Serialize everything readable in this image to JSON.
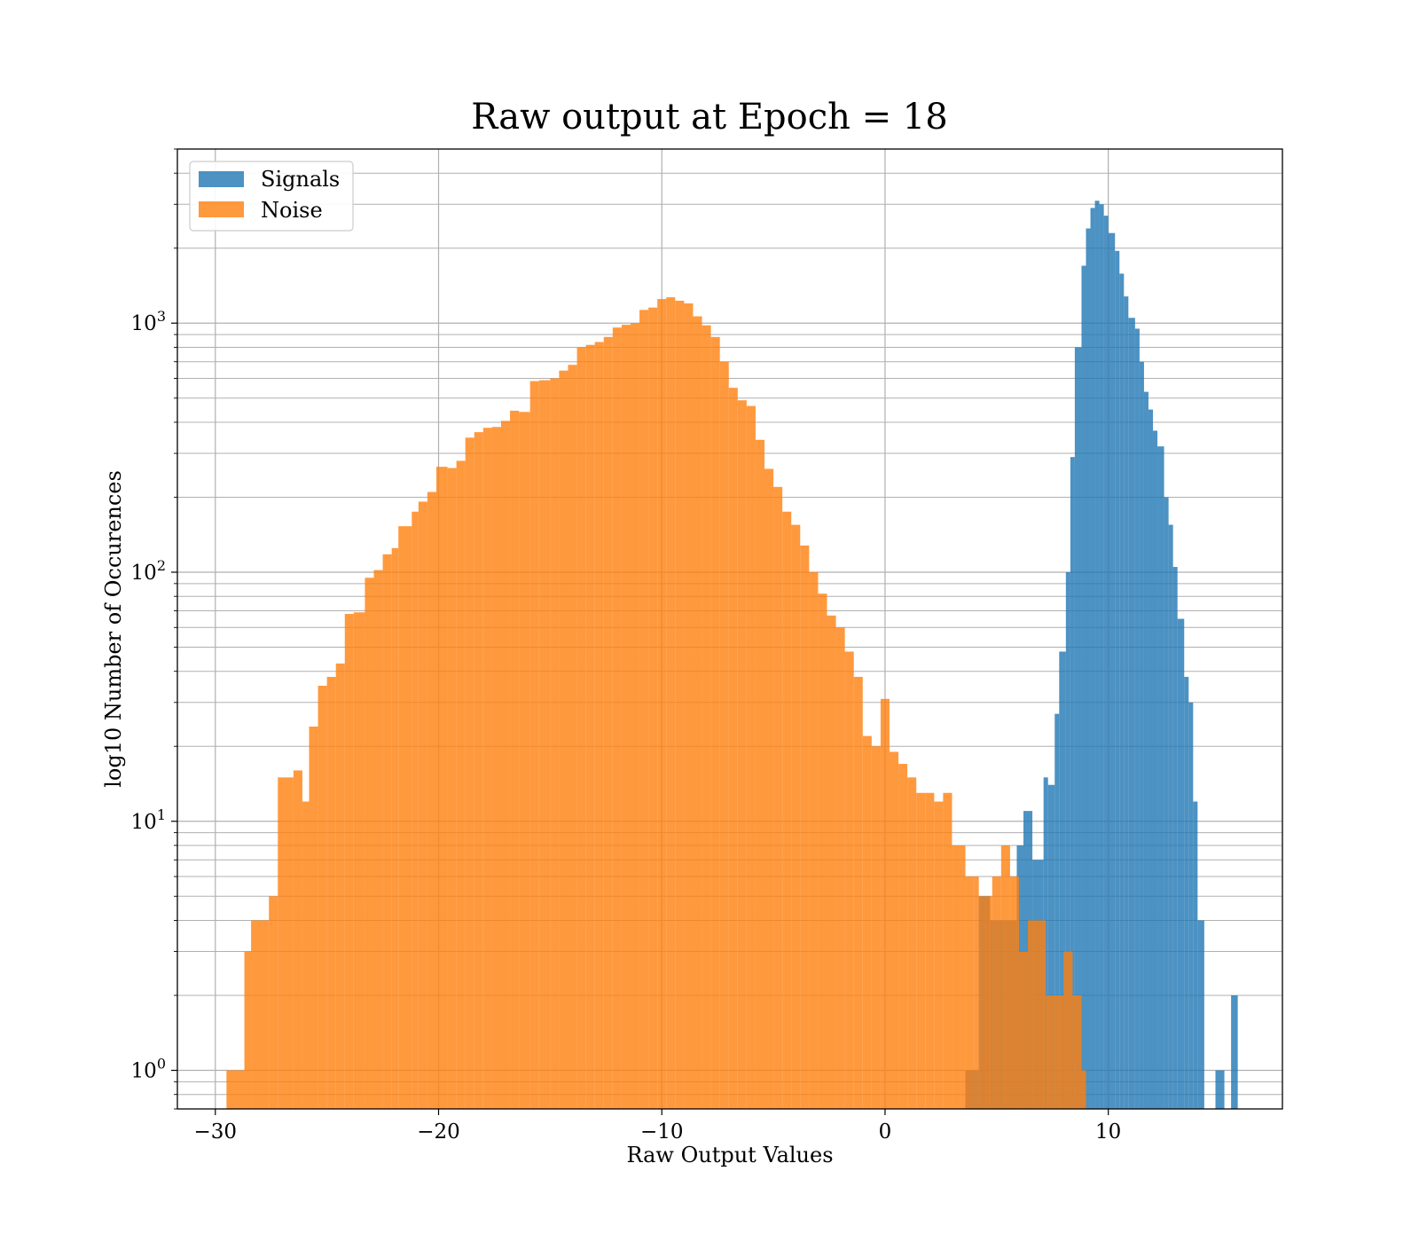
{
  "chart_data": {
    "type": "bar",
    "title": "Raw output at Epoch = 18",
    "xlabel": "Raw Output Values",
    "ylabel": "log10 Number of Occurences",
    "xlim": [
      -31.7,
      17.8
    ],
    "ylim": [
      0.7,
      5000
    ],
    "yscale": "log",
    "grid": true,
    "grid_minor": true,
    "legend_position": "upper-left",
    "x_ticks": [
      {
        "value": -30,
        "label": "−30"
      },
      {
        "value": -20,
        "label": "−20"
      },
      {
        "value": -10,
        "label": "−10"
      },
      {
        "value": 0,
        "label": "0"
      },
      {
        "value": 10,
        "label": "10"
      }
    ],
    "y_ticks": [
      {
        "value": 1,
        "base": "10",
        "exp": "0"
      },
      {
        "value": 10,
        "base": "10",
        "exp": "1"
      },
      {
        "value": 100,
        "base": "10",
        "exp": "2"
      },
      {
        "value": 1000,
        "base": "10",
        "exp": "3"
      }
    ],
    "series": [
      {
        "name": "Signals",
        "color": "#1f77b4",
        "opacity": 0.8,
        "bins": [
          [
            3.6,
            4.2,
            1
          ],
          [
            4.2,
            4.7,
            5
          ],
          [
            4.7,
            5.4,
            4
          ],
          [
            5.4,
            5.9,
            4
          ],
          [
            5.9,
            6.2,
            8
          ],
          [
            6.2,
            6.6,
            11
          ],
          [
            6.6,
            7.1,
            7
          ],
          [
            7.1,
            7.3,
            15
          ],
          [
            7.3,
            7.6,
            14
          ],
          [
            7.6,
            7.8,
            27
          ],
          [
            7.8,
            8.1,
            48
          ],
          [
            8.1,
            8.3,
            100
          ],
          [
            8.3,
            8.5,
            290
          ],
          [
            8.5,
            8.8,
            800
          ],
          [
            8.8,
            9.0,
            1700
          ],
          [
            9.0,
            9.2,
            2400
          ],
          [
            9.2,
            9.4,
            2900
          ],
          [
            9.4,
            9.6,
            3100
          ],
          [
            9.6,
            9.8,
            3000
          ],
          [
            9.8,
            10.0,
            2700
          ],
          [
            10.0,
            10.3,
            2300
          ],
          [
            10.3,
            10.5,
            1950
          ],
          [
            10.5,
            10.7,
            1580
          ],
          [
            10.7,
            10.9,
            1280
          ],
          [
            10.9,
            11.2,
            1050
          ],
          [
            11.2,
            11.4,
            950
          ],
          [
            11.4,
            11.6,
            700
          ],
          [
            11.6,
            11.8,
            530
          ],
          [
            11.8,
            12.0,
            450
          ],
          [
            12.0,
            12.2,
            370
          ],
          [
            12.2,
            12.5,
            320
          ],
          [
            12.5,
            12.7,
            200
          ],
          [
            12.7,
            12.9,
            155
          ],
          [
            12.9,
            13.1,
            105
          ],
          [
            13.1,
            13.4,
            65
          ],
          [
            13.4,
            13.6,
            38
          ],
          [
            13.6,
            13.8,
            30
          ],
          [
            13.8,
            14.0,
            12
          ],
          [
            14.0,
            14.3,
            4
          ],
          [
            14.3,
            14.8,
            0
          ],
          [
            14.8,
            15.2,
            1
          ],
          [
            15.2,
            15.5,
            0
          ],
          [
            15.5,
            15.8,
            2
          ]
        ]
      },
      {
        "name": "Noise",
        "color": "#ff7f0e",
        "opacity": 0.8,
        "bins": [
          [
            -29.5,
            -28.7,
            1
          ],
          [
            -28.7,
            -28.4,
            3
          ],
          [
            -28.4,
            -27.6,
            4
          ],
          [
            -27.6,
            -27.2,
            5
          ],
          [
            -27.2,
            -26.5,
            15
          ],
          [
            -26.5,
            -26.1,
            16
          ],
          [
            -26.1,
            -25.8,
            12
          ],
          [
            -25.8,
            -25.4,
            24
          ],
          [
            -25.4,
            -25.0,
            35
          ],
          [
            -25.0,
            -24.6,
            38
          ],
          [
            -24.6,
            -24.2,
            43
          ],
          [
            -24.2,
            -23.8,
            68
          ],
          [
            -23.8,
            -23.3,
            69
          ],
          [
            -23.3,
            -22.9,
            95
          ],
          [
            -22.9,
            -22.5,
            102
          ],
          [
            -22.5,
            -22.1,
            118
          ],
          [
            -22.1,
            -21.8,
            125
          ],
          [
            -21.8,
            -21.2,
            153
          ],
          [
            -21.2,
            -20.9,
            175
          ],
          [
            -20.9,
            -20.5,
            192
          ],
          [
            -20.5,
            -20.1,
            210
          ],
          [
            -20.1,
            -19.6,
            265
          ],
          [
            -19.6,
            -19.2,
            262
          ],
          [
            -19.2,
            -18.8,
            280
          ],
          [
            -18.8,
            -18.4,
            347
          ],
          [
            -18.4,
            -18.0,
            365
          ],
          [
            -18.0,
            -17.6,
            380
          ],
          [
            -17.6,
            -17.2,
            383
          ],
          [
            -17.2,
            -16.8,
            405
          ],
          [
            -16.8,
            -16.4,
            445
          ],
          [
            -16.4,
            -15.9,
            440
          ],
          [
            -15.9,
            -15.5,
            585
          ],
          [
            -15.5,
            -15.0,
            590
          ],
          [
            -15.0,
            -14.6,
            600
          ],
          [
            -14.6,
            -14.2,
            645
          ],
          [
            -14.2,
            -13.8,
            680
          ],
          [
            -13.8,
            -13.4,
            800
          ],
          [
            -13.4,
            -13.0,
            818
          ],
          [
            -13.0,
            -12.6,
            840
          ],
          [
            -12.6,
            -12.2,
            880
          ],
          [
            -12.2,
            -11.8,
            960
          ],
          [
            -11.8,
            -11.4,
            985
          ],
          [
            -11.4,
            -11.0,
            1000
          ],
          [
            -11.0,
            -10.6,
            1130
          ],
          [
            -10.6,
            -10.2,
            1155
          ],
          [
            -10.2,
            -9.8,
            1250
          ],
          [
            -9.8,
            -9.4,
            1270
          ],
          [
            -9.4,
            -9.0,
            1230
          ],
          [
            -9.0,
            -8.6,
            1200
          ],
          [
            -8.6,
            -8.2,
            1065
          ],
          [
            -8.2,
            -7.8,
            980
          ],
          [
            -7.8,
            -7.4,
            880
          ],
          [
            -7.4,
            -7.0,
            700
          ],
          [
            -7.0,
            -6.6,
            550
          ],
          [
            -6.6,
            -6.2,
            490
          ],
          [
            -6.2,
            -5.8,
            465
          ],
          [
            -5.8,
            -5.4,
            340
          ],
          [
            -5.4,
            -5.0,
            260
          ],
          [
            -5.0,
            -4.6,
            220
          ],
          [
            -4.6,
            -4.2,
            175
          ],
          [
            -4.2,
            -3.8,
            155
          ],
          [
            -3.8,
            -3.4,
            128
          ],
          [
            -3.4,
            -3.0,
            100
          ],
          [
            -3.0,
            -2.6,
            82
          ],
          [
            -2.6,
            -2.2,
            67
          ],
          [
            -2.2,
            -1.8,
            60
          ],
          [
            -1.8,
            -1.4,
            48
          ],
          [
            -1.4,
            -1.0,
            38
          ],
          [
            -1.0,
            -0.6,
            22
          ],
          [
            -0.6,
            -0.2,
            20
          ],
          [
            -0.2,
            0.2,
            31
          ],
          [
            0.2,
            0.6,
            19
          ],
          [
            0.6,
            1.0,
            17
          ],
          [
            1.0,
            1.4,
            15
          ],
          [
            1.4,
            1.8,
            13
          ],
          [
            1.8,
            2.2,
            13
          ],
          [
            2.2,
            2.6,
            12
          ],
          [
            2.6,
            3.0,
            13
          ],
          [
            3.0,
            3.4,
            8
          ],
          [
            3.4,
            3.6,
            8
          ],
          [
            3.6,
            4.0,
            6
          ],
          [
            4.0,
            4.2,
            6
          ],
          [
            4.2,
            4.4,
            5
          ],
          [
            4.4,
            4.8,
            5
          ],
          [
            4.8,
            5.2,
            6
          ],
          [
            5.2,
            5.6,
            8
          ],
          [
            5.6,
            6.0,
            6
          ],
          [
            6.0,
            6.4,
            3
          ],
          [
            6.4,
            6.8,
            4
          ],
          [
            6.8,
            7.2,
            4
          ],
          [
            7.2,
            7.6,
            2
          ],
          [
            7.6,
            8.0,
            2
          ],
          [
            8.0,
            8.4,
            3
          ],
          [
            8.4,
            8.8,
            2
          ],
          [
            8.8,
            9.0,
            1
          ]
        ]
      }
    ]
  }
}
